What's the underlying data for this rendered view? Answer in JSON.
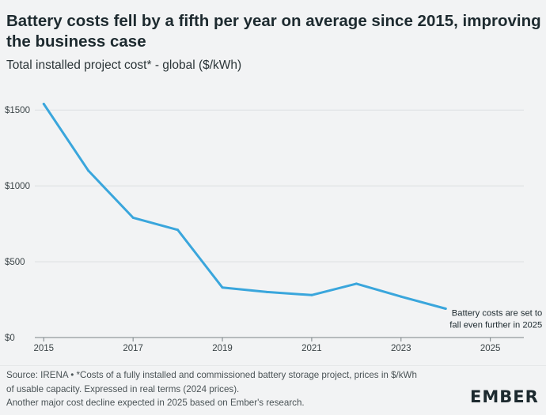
{
  "header": {
    "title": "Battery costs fell by a fifth per year on average since 2015, improving the business case",
    "subtitle": "Total installed project cost* - global ($/kWh)"
  },
  "chart_data": {
    "type": "line",
    "title": "Battery costs fell by a fifth per year on average since 2015, improving the business case",
    "ylabel": "Total installed project cost* - global ($/kWh)",
    "xlabel": "",
    "xlim": [
      2014.8,
      2025.75
    ],
    "ylim": [
      0,
      1600
    ],
    "x_ticks": [
      2015,
      2017,
      2019,
      2021,
      2023,
      2025
    ],
    "x_tick_labels": [
      "2015",
      "2017",
      "2019",
      "2021",
      "2023",
      "2025"
    ],
    "y_ticks": [
      0,
      500,
      1000,
      1500
    ],
    "y_tick_labels": [
      "$0",
      "$500",
      "$1000",
      "$1500"
    ],
    "grid": true,
    "series": [
      {
        "name": "Total installed project cost",
        "color": "#3aa6dc",
        "x": [
          2015,
          2016,
          2017,
          2018,
          2019,
          2020,
          2021,
          2022,
          2023,
          2024
        ],
        "values": [
          1540,
          1100,
          790,
          710,
          330,
          300,
          280,
          355,
          270,
          190
        ]
      }
    ],
    "annotation": {
      "line1": "Battery costs are set to",
      "line2": "fall even further in 2025"
    }
  },
  "footer": {
    "note_line1": "Source: IRENA • *Costs of a fully installed and commissioned battery storage project, prices in $/kWh",
    "note_line2": "of usable capacity. Expressed in real terms (2024 prices).",
    "note_line3": "Another major cost decline expected in 2025 based on Ember's research.",
    "logo_text": "EMBER"
  },
  "colors": {
    "background": "#f2f3f4",
    "line": "#3aa6dc",
    "grid": "#dcdfe1",
    "axis": "#7a8386",
    "text": "#1d2a2f"
  }
}
